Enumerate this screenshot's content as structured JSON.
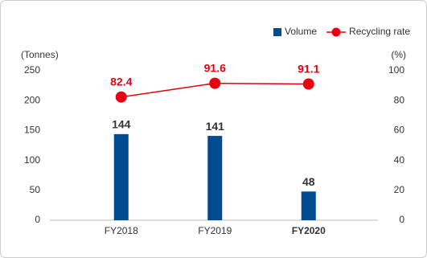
{
  "chart_data": {
    "type": "combo",
    "categories": [
      "FY2018",
      "FY2019",
      "FY2020"
    ],
    "bold_category_index": 2,
    "series": [
      {
        "name": "Volume",
        "type": "bar",
        "color": "#004a8f",
        "values": [
          144,
          141,
          48
        ]
      },
      {
        "name": "Recycling rate",
        "type": "line",
        "axis": "y2",
        "color": "#e60012",
        "values": [
          82.4,
          91.6,
          91.1
        ]
      }
    ],
    "y_label": "(Tonnes)",
    "y2_label": "(%)",
    "ylim": [
      0,
      250
    ],
    "yticks": [
      0,
      50,
      100,
      150,
      200,
      250
    ],
    "y2lim": [
      0,
      100
    ],
    "y2ticks": [
      0,
      20,
      40,
      60,
      80,
      100
    ],
    "legend": "top-right"
  }
}
